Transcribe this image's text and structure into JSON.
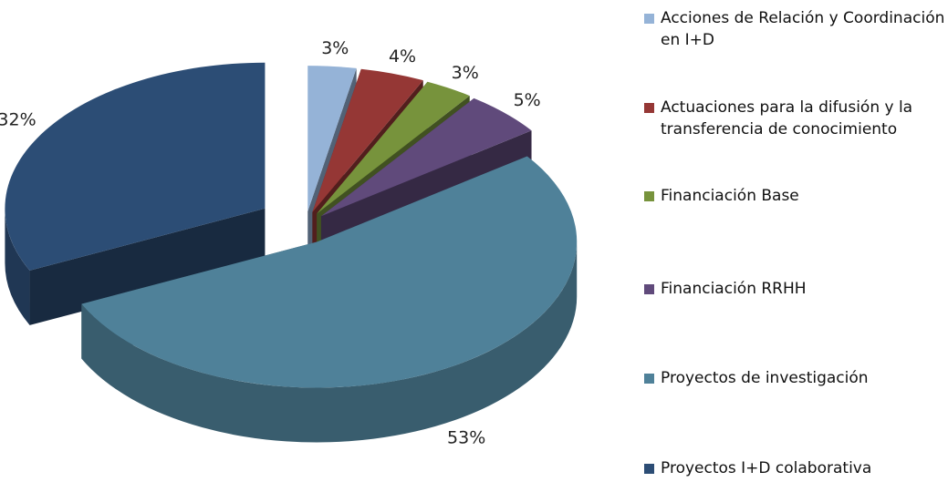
{
  "chart_data": {
    "type": "pie3d",
    "categories": [
      "Acciones de Relación y Coordinación en I+D",
      "Actuaciones para la difusión y la transferencia de conocimiento",
      "Financiación Base",
      "Financiación RRHH",
      "Proyectos de investigación",
      "Proyectos I+D colaborativa"
    ],
    "values": [
      3,
      4,
      3,
      5,
      53,
      32
    ],
    "value_labels": [
      "3%",
      "4%",
      "3%",
      "5%",
      "53%",
      "32%"
    ],
    "colors": [
      "#95b3d7",
      "#953735",
      "#77933c",
      "#604a7b",
      "#4f8199",
      "#2c4d75"
    ]
  }
}
